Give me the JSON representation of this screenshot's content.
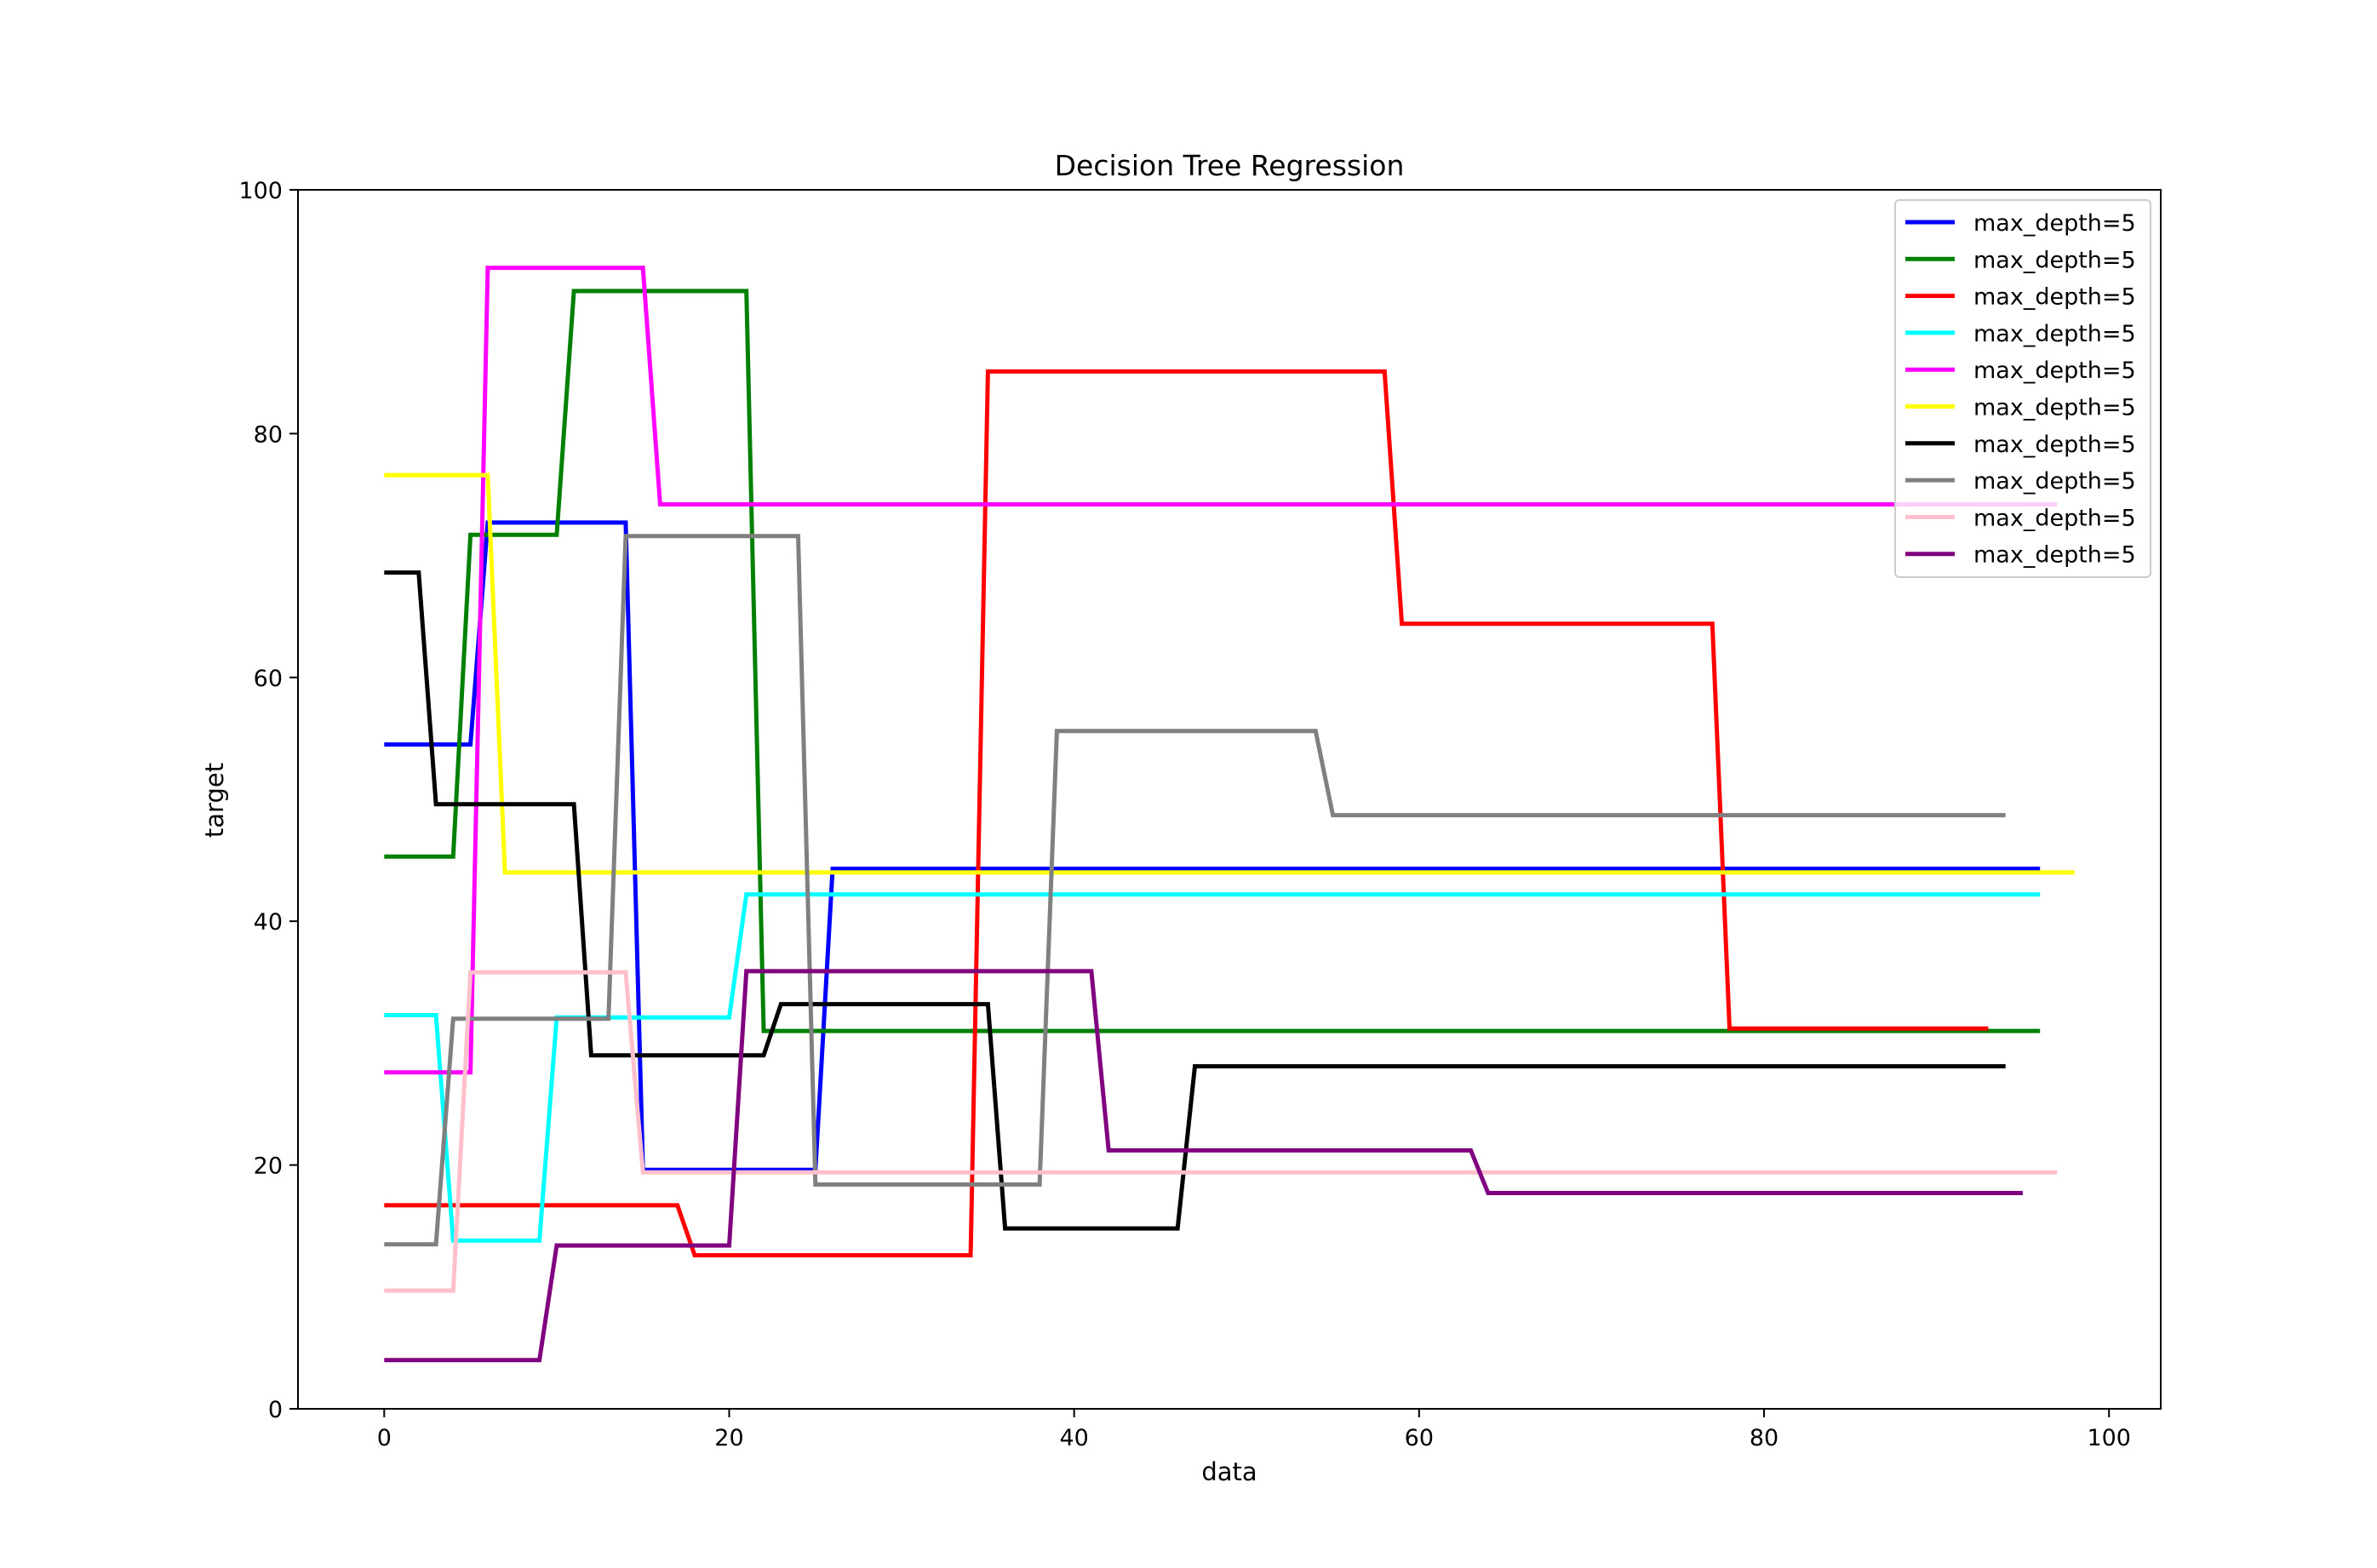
{
  "chart_data": {
    "type": "line",
    "title": "Decision Tree Regression",
    "xlabel": "data",
    "ylabel": "target",
    "xlim": [
      -5,
      103
    ],
    "ylim": [
      0,
      100
    ],
    "xticks": [
      0,
      20,
      40,
      60,
      80,
      100
    ],
    "yticks": [
      0,
      20,
      40,
      60,
      80,
      100
    ],
    "grid": false,
    "legend_position": "top-right",
    "series": [
      {
        "name": "max_depth=5",
        "color": "#0000ff",
        "x": [
          0,
          5,
          6,
          14,
          15,
          25,
          26,
          96
        ],
        "y": [
          54.5,
          54.5,
          72.7,
          72.7,
          19.6,
          19.6,
          44.3,
          44.3
        ]
      },
      {
        "name": "max_depth=5",
        "color": "#008000",
        "x": [
          0,
          4,
          5,
          10,
          11,
          21,
          22,
          96
        ],
        "y": [
          45.3,
          45.3,
          71.7,
          71.7,
          91.7,
          91.7,
          31.0,
          31.0
        ]
      },
      {
        "name": "max_depth=5",
        "color": "#ff0000",
        "x": [
          0,
          17,
          18,
          34,
          35,
          58,
          59,
          77,
          78,
          93
        ],
        "y": [
          16.7,
          16.7,
          12.6,
          12.6,
          85.1,
          85.1,
          64.4,
          64.4,
          31.2,
          31.2
        ]
      },
      {
        "name": "max_depth=5",
        "color": "#00ffff",
        "x": [
          0,
          3,
          4,
          9,
          10,
          20,
          21,
          96
        ],
        "y": [
          32.3,
          32.3,
          13.8,
          13.8,
          32.1,
          32.1,
          42.2,
          42.2
        ]
      },
      {
        "name": "max_depth=5",
        "color": "#ff00ff",
        "x": [
          0,
          5,
          6,
          15,
          16,
          97
        ],
        "y": [
          27.6,
          27.6,
          93.6,
          93.6,
          74.2,
          74.2
        ]
      },
      {
        "name": "max_depth=5",
        "color": "#ffff00",
        "x": [
          0,
          6,
          7,
          98
        ],
        "y": [
          76.6,
          76.6,
          44.0,
          44.0
        ]
      },
      {
        "name": "max_depth=5",
        "color": "#000000",
        "x": [
          0,
          2,
          3,
          11,
          12,
          22,
          23,
          35,
          36,
          46,
          47,
          94
        ],
        "y": [
          68.6,
          68.6,
          49.6,
          49.6,
          29.0,
          29.0,
          33.2,
          33.2,
          14.8,
          14.8,
          28.1,
          28.1
        ]
      },
      {
        "name": "max_depth=5",
        "color": "#808080",
        "x": [
          0,
          3,
          4,
          13,
          14,
          24,
          25,
          38,
          39,
          54,
          55,
          94
        ],
        "y": [
          13.5,
          13.5,
          32.0,
          32.0,
          71.6,
          71.6,
          18.4,
          18.4,
          55.6,
          55.6,
          48.7,
          48.7
        ]
      },
      {
        "name": "max_depth=5",
        "color": "#ffc0cb",
        "x": [
          0,
          4,
          5,
          14,
          15,
          97
        ],
        "y": [
          9.7,
          9.7,
          35.8,
          35.8,
          19.4,
          19.4
        ]
      },
      {
        "name": "max_depth=5",
        "color": "#800080",
        "x": [
          0,
          9,
          10,
          20,
          21,
          41,
          42,
          63,
          64,
          95
        ],
        "y": [
          4.0,
          4.0,
          13.4,
          13.4,
          35.9,
          35.9,
          21.2,
          21.2,
          17.7,
          17.7
        ]
      }
    ]
  }
}
